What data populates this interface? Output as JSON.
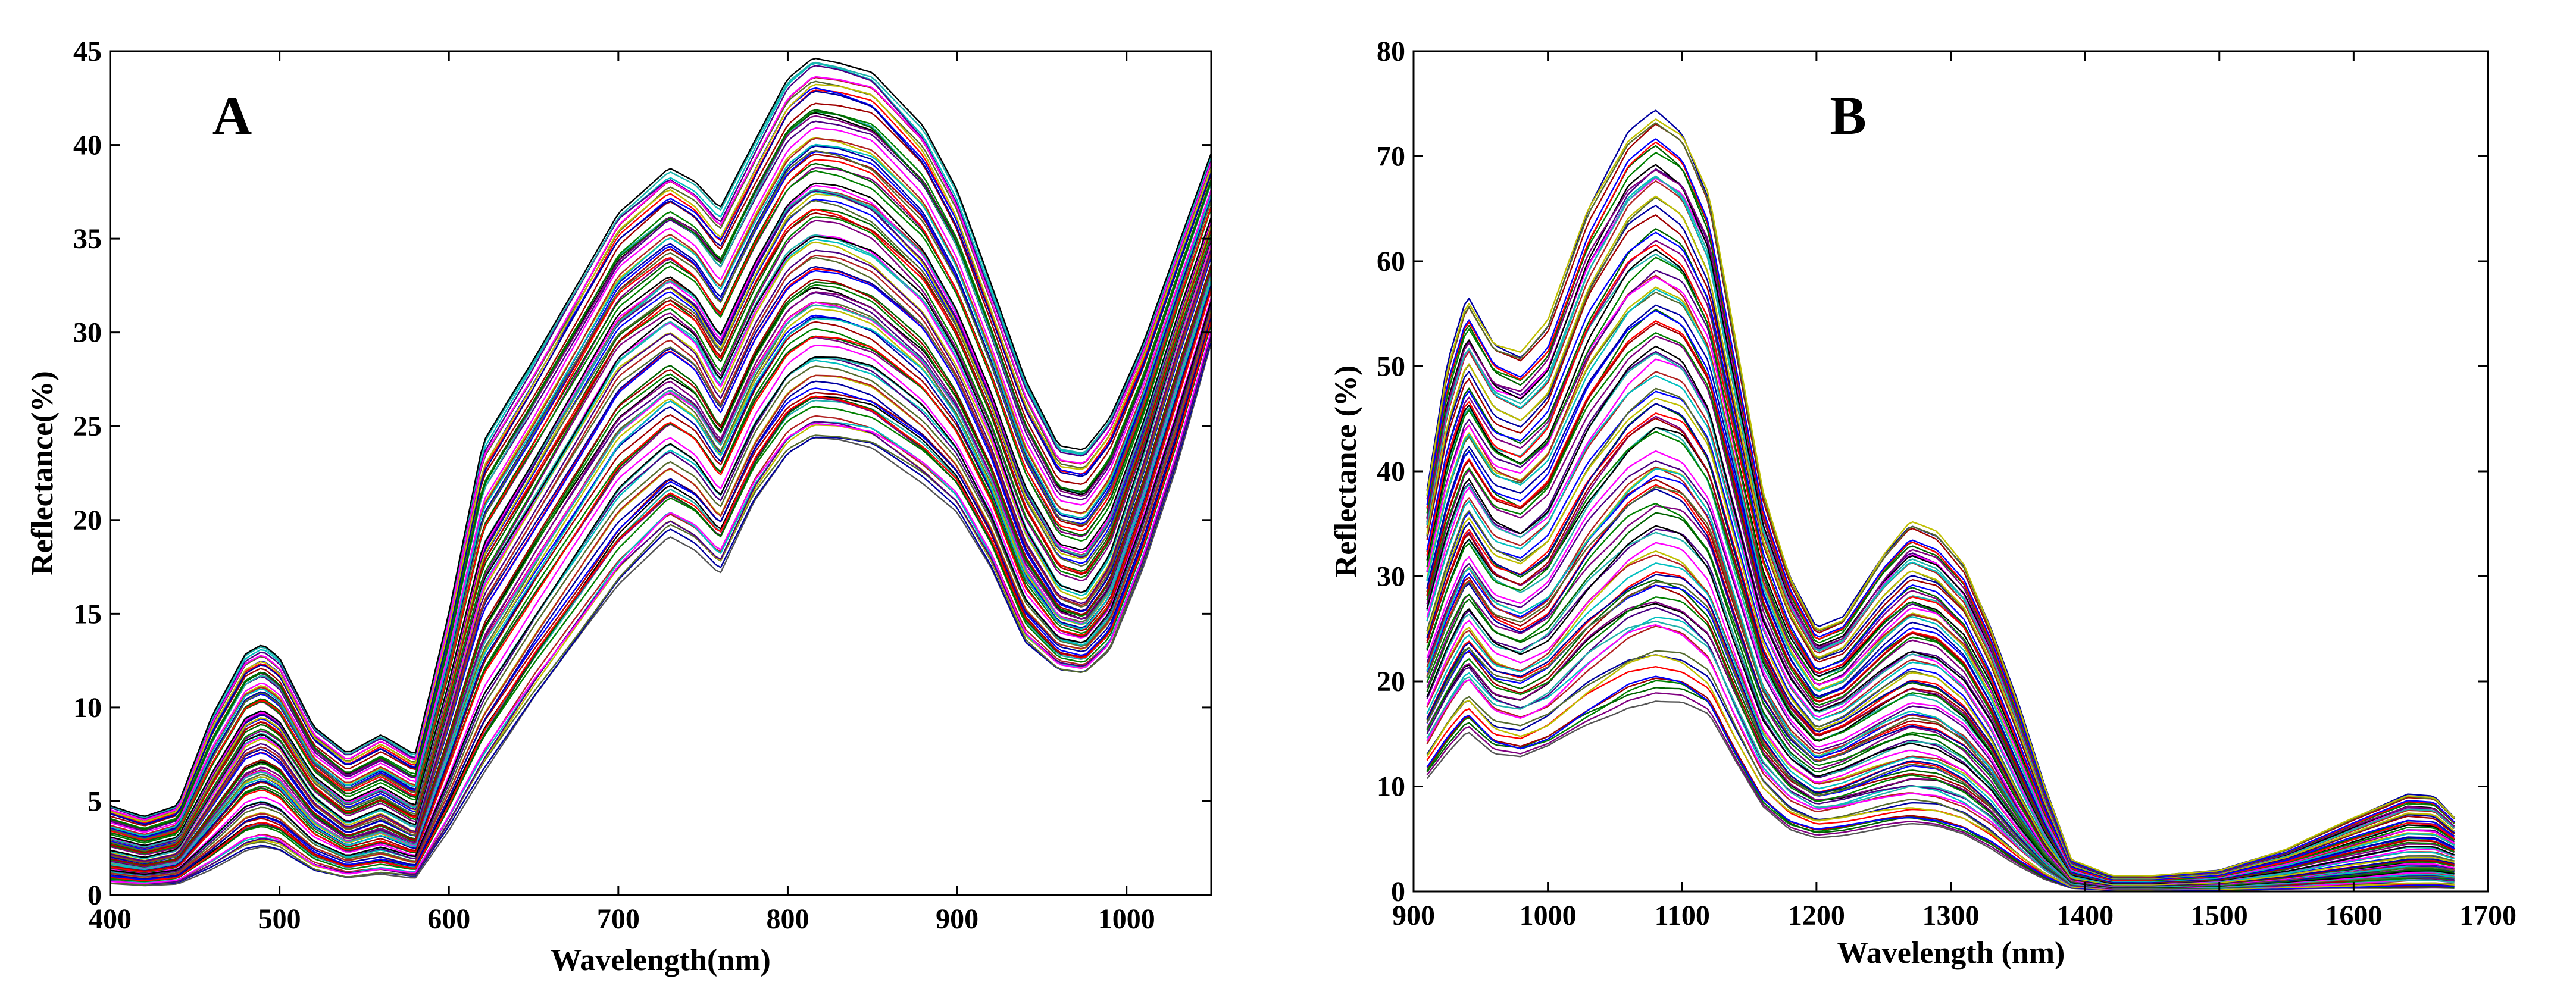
{
  "chart_data": [
    {
      "type": "line",
      "panel_label": "A",
      "title": "",
      "xlabel": "Wavelength(nm)",
      "ylabel": "Reflectance(%)",
      "xlim": [
        400,
        1050
      ],
      "ylim": [
        0,
        45
      ],
      "xticks": [
        400,
        500,
        600,
        700,
        800,
        900,
        1000
      ],
      "yticks": [
        0,
        5,
        10,
        15,
        20,
        25,
        30,
        35,
        40,
        45
      ],
      "grid": false,
      "legend": "none",
      "series_count": 100,
      "representative_series": [
        {
          "name": "upper envelope",
          "x": [
            400,
            420,
            440,
            460,
            480,
            490,
            500,
            520,
            540,
            560,
            580,
            600,
            620,
            650,
            700,
            730,
            745,
            760,
            780,
            800,
            815,
            830,
            850,
            880,
            900,
            920,
            940,
            960,
            975,
            990,
            1010,
            1030,
            1050
          ],
          "values": [
            4.8,
            4.2,
            4.8,
            9.5,
            12.8,
            13.3,
            12.6,
            9.0,
            7.6,
            8.6,
            7.5,
            15.0,
            24.0,
            28.5,
            36.5,
            38.8,
            38.0,
            36.5,
            40.0,
            43.5,
            44.7,
            44.5,
            44.0,
            41.0,
            37.5,
            32.5,
            27.5,
            24.0,
            23.8,
            25.5,
            29.5,
            34.5,
            39.5
          ]
        },
        {
          "name": "typical",
          "x": [
            400,
            420,
            440,
            460,
            480,
            490,
            500,
            520,
            540,
            560,
            580,
            600,
            620,
            650,
            700,
            730,
            745,
            760,
            780,
            800,
            815,
            830,
            850,
            880,
            900,
            920,
            940,
            960,
            975,
            990,
            1010,
            1030,
            1050
          ],
          "values": [
            2.2,
            1.8,
            2.2,
            5.0,
            7.8,
            8.2,
            7.6,
            5.0,
            3.6,
            4.3,
            3.3,
            9.5,
            16.0,
            20.5,
            28.0,
            30.0,
            29.0,
            26.5,
            30.5,
            33.5,
            34.5,
            34.3,
            33.5,
            31.0,
            28.0,
            24.0,
            19.0,
            16.0,
            15.5,
            17.5,
            23.0,
            29.0,
            34.5
          ]
        },
        {
          "name": "lower envelope",
          "x": [
            400,
            420,
            440,
            460,
            480,
            490,
            500,
            520,
            540,
            560,
            580,
            600,
            620,
            650,
            700,
            730,
            745,
            760,
            780,
            800,
            815,
            830,
            850,
            880,
            900,
            920,
            940,
            960,
            975,
            990,
            1010,
            1030,
            1050
          ],
          "values": [
            0.6,
            0.5,
            0.6,
            1.4,
            2.4,
            2.6,
            2.4,
            1.3,
            0.9,
            1.1,
            0.9,
            3.5,
            6.5,
            10.5,
            16.5,
            19.2,
            18.5,
            17.2,
            21.0,
            23.5,
            24.3,
            24.2,
            23.8,
            22.0,
            20.5,
            17.5,
            13.5,
            12.0,
            11.8,
            13.0,
            17.5,
            23.0,
            29.5
          ]
        }
      ]
    },
    {
      "type": "line",
      "panel_label": "B",
      "title": "",
      "xlabel": "Wavelength (nm)",
      "ylabel": "Reflectance (%)",
      "xlim": [
        900,
        1700
      ],
      "ylim": [
        0,
        80
      ],
      "xticks": [
        900,
        1000,
        1100,
        1200,
        1300,
        1400,
        1500,
        1600,
        1700
      ],
      "yticks": [
        0,
        10,
        20,
        30,
        40,
        50,
        60,
        70,
        80
      ],
      "grid": false,
      "legend": "none",
      "series_count": 100,
      "representative_series": [
        {
          "name": "upper envelope",
          "x": [
            910,
            925,
            940,
            960,
            980,
            1000,
            1030,
            1060,
            1080,
            1100,
            1120,
            1140,
            1160,
            1180,
            1200,
            1220,
            1250,
            1270,
            1290,
            1310,
            1330,
            1350,
            1370,
            1390,
            1420,
            1450,
            1500,
            1550,
            1600,
            1640,
            1660,
            1675
          ],
          "values": [
            38,
            50,
            56.5,
            52,
            51,
            54,
            65,
            72,
            74,
            72,
            66,
            52,
            38,
            30,
            25,
            26,
            32,
            35,
            34,
            31,
            25,
            18,
            10,
            3,
            1.5,
            1.5,
            2,
            4,
            7,
            9.2,
            9,
            7
          ]
        },
        {
          "name": "typical",
          "x": [
            910,
            925,
            940,
            960,
            980,
            1000,
            1030,
            1060,
            1080,
            1100,
            1120,
            1140,
            1160,
            1180,
            1200,
            1220,
            1250,
            1270,
            1290,
            1310,
            1330,
            1350,
            1370,
            1390,
            1420,
            1450,
            1500,
            1550,
            1600,
            1640,
            1660,
            1675
          ],
          "values": [
            24,
            30,
            35,
            31,
            30,
            32,
            39,
            44,
            46,
            45,
            41,
            32,
            23,
            18,
            15,
            16,
            18.5,
            20,
            19.5,
            17.5,
            14,
            9,
            4.5,
            1.2,
            0.6,
            0.6,
            0.8,
            1.4,
            2.3,
            3,
            3,
            2.6
          ]
        },
        {
          "name": "lower envelope",
          "x": [
            910,
            925,
            940,
            960,
            980,
            1000,
            1030,
            1060,
            1080,
            1100,
            1120,
            1140,
            1160,
            1180,
            1200,
            1220,
            1250,
            1270,
            1290,
            1310,
            1330,
            1350,
            1370,
            1390,
            1420,
            1450,
            1500,
            1550,
            1600,
            1640,
            1660,
            1675
          ],
          "values": [
            11,
            13.5,
            15.5,
            13,
            12.5,
            13.5,
            16,
            18,
            18.5,
            18,
            16.5,
            12,
            8,
            6,
            5.3,
            5.5,
            6,
            6.2,
            6,
            5.4,
            4.2,
            2.6,
            1.2,
            0.3,
            0.1,
            0.1,
            0.1,
            0.2,
            0.3,
            0.4,
            0.4,
            0.3
          ]
        }
      ]
    }
  ],
  "palette": [
    "#0000ff",
    "#ff0000",
    "#008000",
    "#000000",
    "#ff00ff",
    "#00bfbf",
    "#bfbf00",
    "#0000a0",
    "#a00000",
    "#006400",
    "#800080",
    "#20b2aa",
    "#4b0082",
    "#b22222",
    "#556b2f"
  ]
}
